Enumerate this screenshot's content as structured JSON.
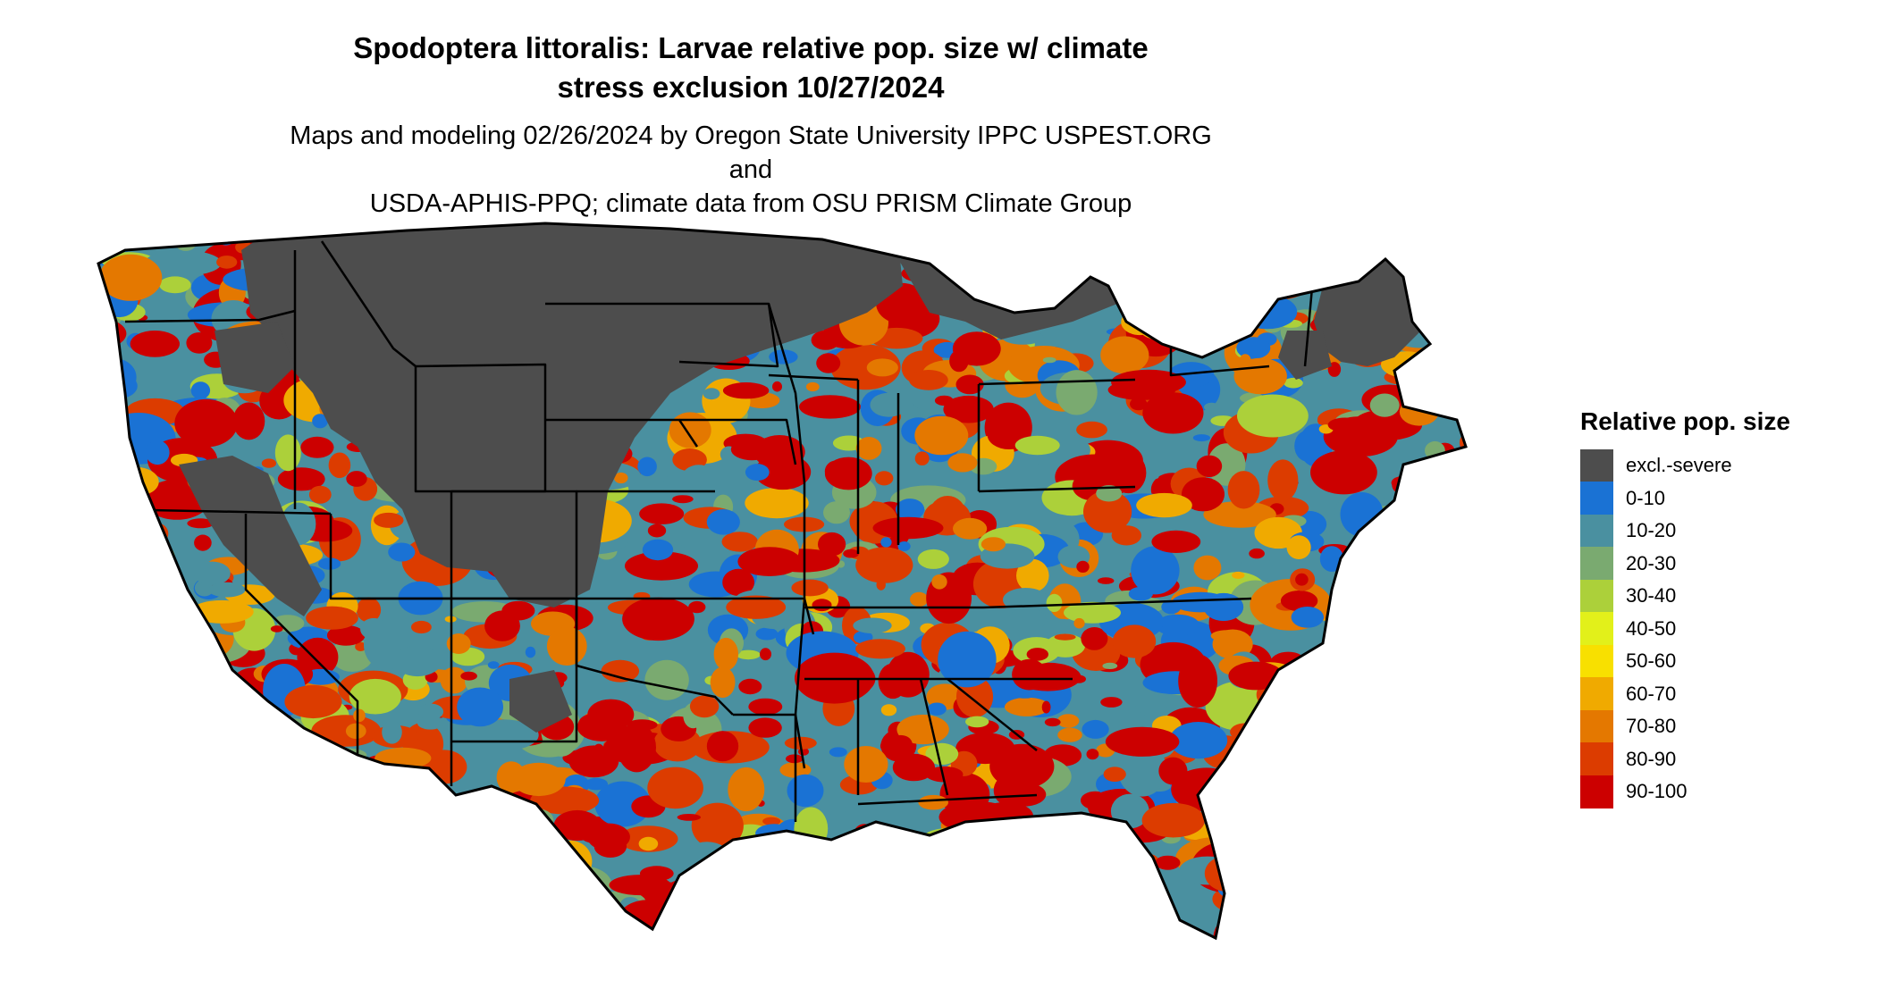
{
  "title_line1": "Spodoptera littoralis: Larvae relative pop. size w/ climate",
  "title_line2": "stress exclusion 10/27/2024",
  "subtitle_line1": "Maps and modeling 02/26/2024 by Oregon State University IPPC USPEST.ORG and",
  "subtitle_line2": "USDA-APHIS-PPQ; climate data from OSU PRISM Climate Group",
  "legend": {
    "title": "Relative pop. size",
    "items": [
      {
        "label": "excl.-severe",
        "color": "#4d4d4d"
      },
      {
        "label": "0-10",
        "color": "#1a72d4"
      },
      {
        "label": "10-20",
        "color": "#4a90a0"
      },
      {
        "label": "20-30",
        "color": "#7aaa70"
      },
      {
        "label": "30-40",
        "color": "#acd03a"
      },
      {
        "label": "40-50",
        "color": "#e2f01a"
      },
      {
        "label": "50-60",
        "color": "#f8e000"
      },
      {
        "label": "60-70",
        "color": "#f0aa00"
      },
      {
        "label": "70-80",
        "color": "#e47800"
      },
      {
        "label": "80-90",
        "color": "#dc3c00"
      },
      {
        "label": "90-100",
        "color": "#cc0000"
      }
    ]
  },
  "map": {
    "excluded_color": "#4d4d4d",
    "boundary_color": "#000000"
  }
}
